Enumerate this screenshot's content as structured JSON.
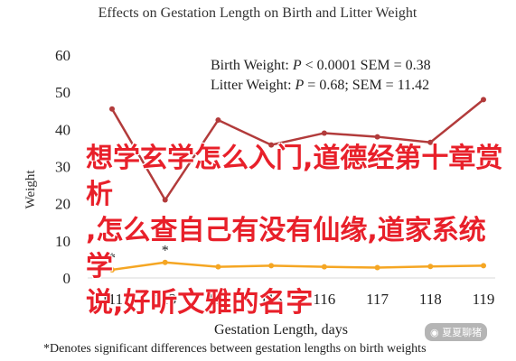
{
  "chart_data": {
    "type": "line",
    "title": "Effects on Gestation Length on Birth and Litter Weight",
    "xlabel": "Gestation Length, days",
    "ylabel": "Weight",
    "footnote": "*Denotes significant differences between gestation lengths on birth weights",
    "categories": [
      "111",
      "113",
      "114",
      "115",
      "116",
      "117",
      "118",
      "119"
    ],
    "ylim": [
      0,
      60
    ],
    "yticks": [
      "0",
      "10",
      "20",
      "30",
      "40",
      "50",
      "60"
    ],
    "grid": false,
    "legend_position": "top-right",
    "series": [
      {
        "name": "Birth Weight",
        "legend_text": "Birth Weight: P < 0.0001 SEM = 0.38",
        "color": "#f5a623",
        "values": [
          2.2,
          4.2,
          3.0,
          3.3,
          3.0,
          2.8,
          3.1,
          3.3
        ],
        "markers": [
          "*",
          "*",
          "",
          "",
          "",
          "",
          "",
          ""
        ]
      },
      {
        "name": "Litter Weight",
        "legend_text": "Litter Weight: P = 0.68; SEM = 11.42",
        "color": "#b23b3b",
        "values": [
          45.5,
          21.0,
          42.5,
          35.8,
          39.0,
          38.0,
          36.5,
          48.0
        ],
        "markers": [
          "",
          "",
          "",
          "",
          "",
          "",
          "",
          ""
        ]
      }
    ]
  },
  "overlay_text": {
    "line1": "想学玄学怎么入门,道德经第十章赏析",
    "line2": ",怎么查自己有没有仙缘,道家系统学",
    "line3": "说,好听文雅的名字"
  },
  "watermark": {
    "icon": "wechat-icon",
    "text": "夏夏聊猪"
  }
}
